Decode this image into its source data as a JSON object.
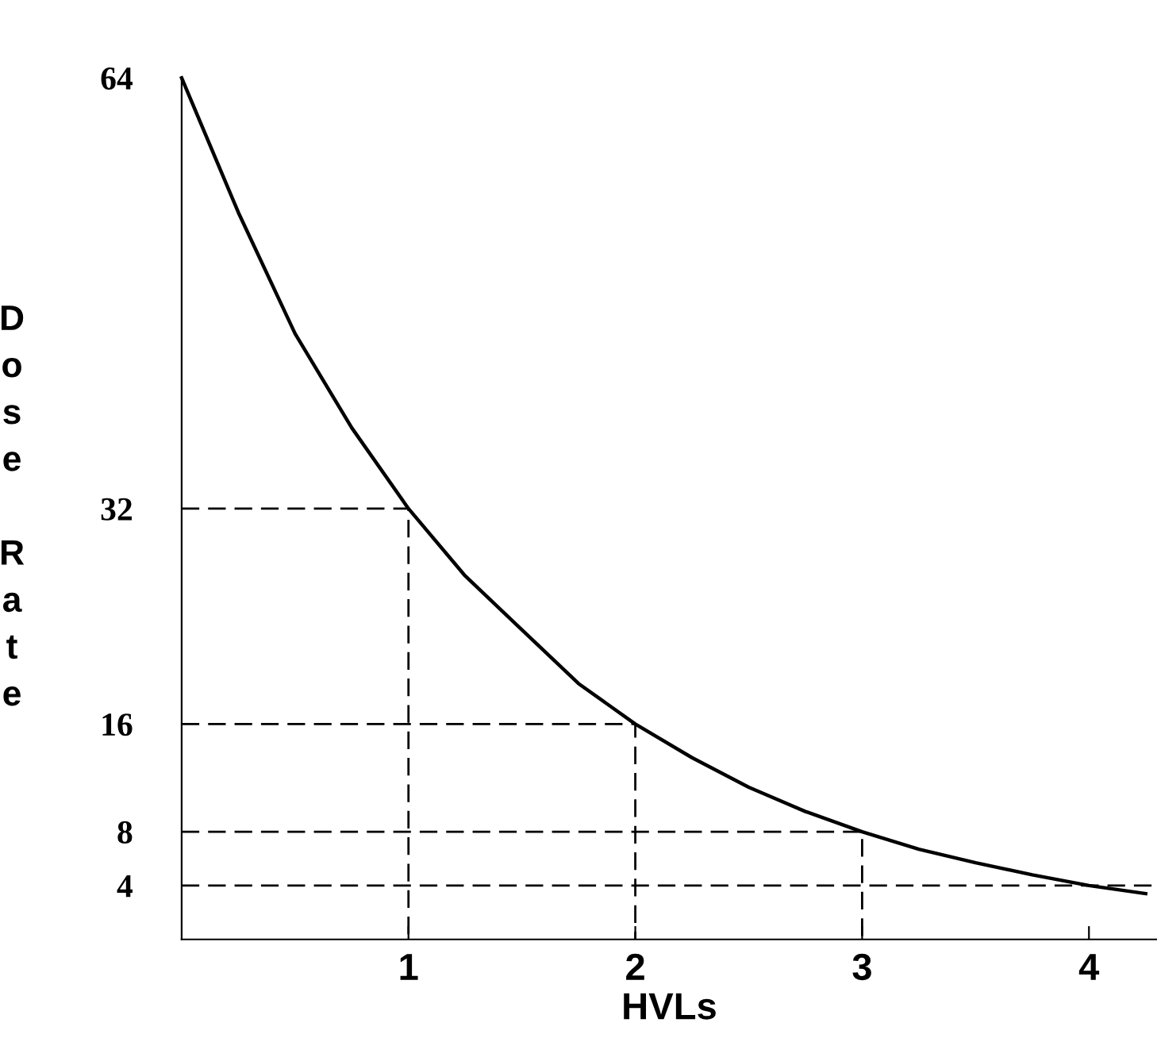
{
  "chart_data": {
    "type": "line",
    "xlabel": "HVLs",
    "ylabel": "Dose Rate",
    "xlim": [
      0,
      4.3
    ],
    "xticks": [
      1,
      2,
      3,
      4
    ],
    "ylim": [
      0,
      64
    ],
    "yticks": [
      4,
      8,
      16,
      32,
      64
    ],
    "grid": false,
    "legend": false,
    "marker": "none",
    "series": [
      {
        "color": "#000000",
        "line_style": "solid",
        "x": [
          0,
          0.25,
          0.5,
          0.75,
          1,
          1.25,
          1.5,
          1.75,
          2,
          2.25,
          2.5,
          2.75,
          3,
          3.25,
          3.5,
          3.75,
          4,
          4.25
        ],
        "values": [
          64,
          54,
          45,
          38,
          32,
          27,
          23,
          19,
          16,
          13.5,
          11.3,
          9.5,
          8,
          6.7,
          5.7,
          4.8,
          4,
          3.4
        ]
      },
      {
        "color": "#000000",
        "line_style": "dashed",
        "x": [
          0,
          1,
          1
        ],
        "values": [
          32,
          32,
          0
        ]
      },
      {
        "color": "#000000",
        "line_style": "dashed",
        "x": [
          0,
          2,
          2
        ],
        "values": [
          16,
          16,
          0
        ]
      },
      {
        "color": "#000000",
        "line_style": "dashed",
        "x": [
          0,
          3,
          3
        ],
        "values": [
          8,
          8,
          0
        ]
      },
      {
        "color": "#000000",
        "line_style": "dashed",
        "x": [
          0,
          4.3
        ],
        "values": [
          4,
          4
        ]
      }
    ]
  }
}
